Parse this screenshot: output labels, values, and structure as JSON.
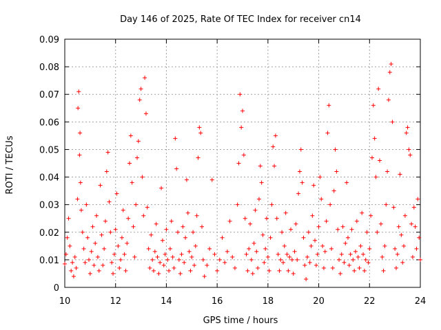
{
  "chart_data": {
    "type": "scatter",
    "title": "Day 146 of 2025, Rate Of TEC Index for receiver cn14",
    "xlabel": "GPS time / hours",
    "ylabel": "ROTI / TECUs",
    "xlim": [
      10,
      24
    ],
    "ylim": [
      0,
      0.09
    ],
    "x_ticks": [
      "10",
      "12",
      "14",
      "16",
      "18",
      "20",
      "22",
      "24"
    ],
    "y_ticks": [
      "0",
      "0.01",
      "0.02",
      "0.03",
      "0.04",
      "0.05",
      "0.06",
      "0.07",
      "0.08",
      "0.09"
    ],
    "grid": true,
    "marker": "+",
    "color": "#ff0000",
    "series": [
      {
        "name": "cn14",
        "points": [
          [
            10.0,
            0.0085
          ],
          [
            10.05,
            0.012
          ],
          [
            10.1,
            0.018
          ],
          [
            10.15,
            0.025
          ],
          [
            10.2,
            0.015
          ],
          [
            10.25,
            0.006
          ],
          [
            10.3,
            0.009
          ],
          [
            10.35,
            0.004
          ],
          [
            10.4,
            0.011
          ],
          [
            10.45,
            0.007
          ],
          [
            10.5,
            0.032
          ],
          [
            10.52,
            0.065
          ],
          [
            10.55,
            0.071
          ],
          [
            10.58,
            0.048
          ],
          [
            10.6,
            0.056
          ],
          [
            10.62,
            0.038
          ],
          [
            10.65,
            0.028
          ],
          [
            10.7,
            0.02
          ],
          [
            10.75,
            0.014
          ],
          [
            10.8,
            0.009
          ],
          [
            10.85,
            0.03
          ],
          [
            10.9,
            0.018
          ],
          [
            10.95,
            0.01
          ],
          [
            11.0,
            0.005
          ],
          [
            11.05,
            0.013
          ],
          [
            11.1,
            0.022
          ],
          [
            11.15,
            0.008
          ],
          [
            11.2,
            0.016
          ],
          [
            11.25,
            0.026
          ],
          [
            11.3,
            0.011
          ],
          [
            11.35,
            0.006
          ],
          [
            11.4,
            0.037
          ],
          [
            11.45,
            0.019
          ],
          [
            11.5,
            0.008
          ],
          [
            11.55,
            0.014
          ],
          [
            11.6,
            0.024
          ],
          [
            11.65,
            0.042
          ],
          [
            11.7,
            0.049
          ],
          [
            11.75,
            0.031
          ],
          [
            11.8,
            0.02
          ],
          [
            11.85,
            0.009
          ],
          [
            11.9,
            0.005
          ],
          [
            11.95,
            0.012
          ],
          [
            12.0,
            0.021
          ],
          [
            12.05,
            0.034
          ],
          [
            12.1,
            0.015
          ],
          [
            12.15,
            0.007
          ],
          [
            12.2,
            0.01
          ],
          [
            12.25,
            0.018
          ],
          [
            12.3,
            0.028
          ],
          [
            12.35,
            0.012
          ],
          [
            12.4,
            0.006
          ],
          [
            12.45,
            0.016
          ],
          [
            12.5,
            0.025
          ],
          [
            12.55,
            0.045
          ],
          [
            12.6,
            0.055
          ],
          [
            12.65,
            0.038
          ],
          [
            12.7,
            0.022
          ],
          [
            12.75,
            0.011
          ],
          [
            12.8,
            0.03
          ],
          [
            12.85,
            0.047
          ],
          [
            12.9,
            0.053
          ],
          [
            12.95,
            0.068
          ],
          [
            13.0,
            0.072
          ],
          [
            13.05,
            0.04
          ],
          [
            13.1,
            0.026
          ],
          [
            13.15,
            0.076
          ],
          [
            13.2,
            0.063
          ],
          [
            13.25,
            0.029
          ],
          [
            13.3,
            0.014
          ],
          [
            13.35,
            0.007
          ],
          [
            13.4,
            0.019
          ],
          [
            13.45,
            0.01
          ],
          [
            13.5,
            0.006
          ],
          [
            13.55,
            0.013
          ],
          [
            13.6,
            0.023
          ],
          [
            13.65,
            0.011
          ],
          [
            13.7,
            0.005
          ],
          [
            13.75,
            0.009
          ],
          [
            13.8,
            0.036
          ],
          [
            13.85,
            0.017
          ],
          [
            13.9,
            0.008
          ],
          [
            13.95,
            0.012
          ],
          [
            14.0,
            0.021
          ],
          [
            14.05,
            0.01
          ],
          [
            14.1,
            0.006
          ],
          [
            14.15,
            0.014
          ],
          [
            14.2,
            0.024
          ],
          [
            14.25,
            0.011
          ],
          [
            14.3,
            0.007
          ],
          [
            14.35,
            0.054
          ],
          [
            14.4,
            0.043
          ],
          [
            14.45,
            0.02
          ],
          [
            14.5,
            0.01
          ],
          [
            14.55,
            0.005
          ],
          [
            14.6,
            0.012
          ],
          [
            14.65,
            0.022
          ],
          [
            14.7,
            0.009
          ],
          [
            14.75,
            0.018
          ],
          [
            14.8,
            0.039
          ],
          [
            14.85,
            0.027
          ],
          [
            14.9,
            0.013
          ],
          [
            14.95,
            0.006
          ],
          [
            15.0,
            0.011
          ],
          [
            15.05,
            0.02
          ],
          [
            15.1,
            0.008
          ],
          [
            15.15,
            0.015
          ],
          [
            15.2,
            0.026
          ],
          [
            15.25,
            0.047
          ],
          [
            15.3,
            0.058
          ],
          [
            15.35,
            0.056
          ],
          [
            15.4,
            0.022
          ],
          [
            15.45,
            0.01
          ],
          [
            15.5,
            0.004
          ],
          [
            15.6,
            0.008
          ],
          [
            15.7,
            0.014
          ],
          [
            15.8,
            0.039
          ],
          [
            15.9,
            0.012
          ],
          [
            16.0,
            0.006
          ],
          [
            16.1,
            0.01
          ],
          [
            16.2,
            0.018
          ],
          [
            16.3,
            0.009
          ],
          [
            16.4,
            0.013
          ],
          [
            16.5,
            0.024
          ],
          [
            16.6,
            0.011
          ],
          [
            16.7,
            0.007
          ],
          [
            16.8,
            0.03
          ],
          [
            16.85,
            0.045
          ],
          [
            16.9,
            0.07
          ],
          [
            16.95,
            0.058
          ],
          [
            17.0,
            0.064
          ],
          [
            17.05,
            0.048
          ],
          [
            17.1,
            0.025
          ],
          [
            17.15,
            0.012
          ],
          [
            17.2,
            0.006
          ],
          [
            17.25,
            0.014
          ],
          [
            17.3,
            0.023
          ],
          [
            17.35,
            0.01
          ],
          [
            17.4,
            0.005
          ],
          [
            17.45,
            0.016
          ],
          [
            17.5,
            0.028
          ],
          [
            17.55,
            0.013
          ],
          [
            17.6,
            0.007
          ],
          [
            17.65,
            0.032
          ],
          [
            17.7,
            0.044
          ],
          [
            17.75,
            0.038
          ],
          [
            17.8,
            0.019
          ],
          [
            17.85,
            0.009
          ],
          [
            17.9,
            0.014
          ],
          [
            17.95,
            0.025
          ],
          [
            18.0,
            0.011
          ],
          [
            18.05,
            0.006
          ],
          [
            18.1,
            0.018
          ],
          [
            18.15,
            0.03
          ],
          [
            18.2,
            0.051
          ],
          [
            18.25,
            0.044
          ],
          [
            18.3,
            0.055
          ],
          [
            18.35,
            0.025
          ],
          [
            18.4,
            0.012
          ],
          [
            18.45,
            0.006
          ],
          [
            18.5,
            0.01
          ],
          [
            18.55,
            0.02
          ],
          [
            18.6,
            0.009
          ],
          [
            18.65,
            0.015
          ],
          [
            18.7,
            0.027
          ],
          [
            18.75,
            0.012
          ],
          [
            18.8,
            0.006
          ],
          [
            18.85,
            0.011
          ],
          [
            18.9,
            0.021
          ],
          [
            18.95,
            0.01
          ],
          [
            19.0,
            0.005
          ],
          [
            19.05,
            0.013
          ],
          [
            19.1,
            0.023
          ],
          [
            19.15,
            0.01
          ],
          [
            19.2,
            0.034
          ],
          [
            19.25,
            0.042
          ],
          [
            19.3,
            0.05
          ],
          [
            19.35,
            0.038
          ],
          [
            19.4,
            0.018
          ],
          [
            19.45,
            0.008
          ],
          [
            19.5,
            0.003
          ],
          [
            19.55,
            0.011
          ],
          [
            19.6,
            0.02
          ],
          [
            19.65,
            0.009
          ],
          [
            19.7,
            0.015
          ],
          [
            19.75,
            0.026
          ],
          [
            19.8,
            0.037
          ],
          [
            19.85,
            0.017
          ],
          [
            19.9,
            0.008
          ],
          [
            19.95,
            0.012
          ],
          [
            20.0,
            0.022
          ],
          [
            20.05,
            0.04
          ],
          [
            20.1,
            0.032
          ],
          [
            20.15,
            0.015
          ],
          [
            20.2,
            0.007
          ],
          [
            20.25,
            0.013
          ],
          [
            20.3,
            0.024
          ],
          [
            20.35,
            0.056
          ],
          [
            20.4,
            0.066
          ],
          [
            20.45,
            0.03
          ],
          [
            20.5,
            0.014
          ],
          [
            20.55,
            0.007
          ],
          [
            20.6,
            0.035
          ],
          [
            20.65,
            0.05
          ],
          [
            20.7,
            0.042
          ],
          [
            20.75,
            0.021
          ],
          [
            20.8,
            0.01
          ],
          [
            20.85,
            0.005
          ],
          [
            20.9,
            0.012
          ],
          [
            20.95,
            0.022
          ],
          [
            21.0,
            0.009
          ],
          [
            21.05,
            0.016
          ],
          [
            21.1,
            0.038
          ],
          [
            21.15,
            0.018
          ],
          [
            21.2,
            0.008
          ],
          [
            21.25,
            0.012
          ],
          [
            21.3,
            0.021
          ],
          [
            21.35,
            0.01
          ],
          [
            21.4,
            0.006
          ],
          [
            21.45,
            0.013
          ],
          [
            21.5,
            0.024
          ],
          [
            21.55,
            0.011
          ],
          [
            21.6,
            0.007
          ],
          [
            21.65,
            0.015
          ],
          [
            21.7,
            0.027
          ],
          [
            21.75,
            0.012
          ],
          [
            21.8,
            0.006
          ],
          [
            21.85,
            0.01
          ],
          [
            21.9,
            0.02
          ],
          [
            21.95,
            0.009
          ],
          [
            22.0,
            0.014
          ],
          [
            22.05,
            0.026
          ],
          [
            22.1,
            0.047
          ],
          [
            22.15,
            0.066
          ],
          [
            22.2,
            0.054
          ],
          [
            22.25,
            0.04
          ],
          [
            22.3,
            0.02
          ],
          [
            22.35,
            0.072
          ],
          [
            22.4,
            0.046
          ],
          [
            22.45,
            0.023
          ],
          [
            22.5,
            0.011
          ],
          [
            22.55,
            0.006
          ],
          [
            22.6,
            0.015
          ],
          [
            22.65,
            0.03
          ],
          [
            22.7,
            0.042
          ],
          [
            22.75,
            0.068
          ],
          [
            22.8,
            0.078
          ],
          [
            22.85,
            0.081
          ],
          [
            22.9,
            0.06
          ],
          [
            22.95,
            0.029
          ],
          [
            23.0,
            0.014
          ],
          [
            23.05,
            0.007
          ],
          [
            23.1,
            0.012
          ],
          [
            23.15,
            0.022
          ],
          [
            23.2,
            0.041
          ],
          [
            23.25,
            0.019
          ],
          [
            23.3,
            0.009
          ],
          [
            23.35,
            0.015
          ],
          [
            23.4,
            0.026
          ],
          [
            23.45,
            0.056
          ],
          [
            23.5,
            0.058
          ],
          [
            23.55,
            0.05
          ],
          [
            23.6,
            0.048
          ],
          [
            23.65,
            0.023
          ],
          [
            23.7,
            0.011
          ],
          [
            23.75,
            0.029
          ],
          [
            23.8,
            0.022
          ],
          [
            23.85,
            0.014
          ],
          [
            23.9,
            0.032
          ],
          [
            23.95,
            0.018
          ],
          [
            24.0,
            0.01
          ]
        ]
      }
    ]
  }
}
